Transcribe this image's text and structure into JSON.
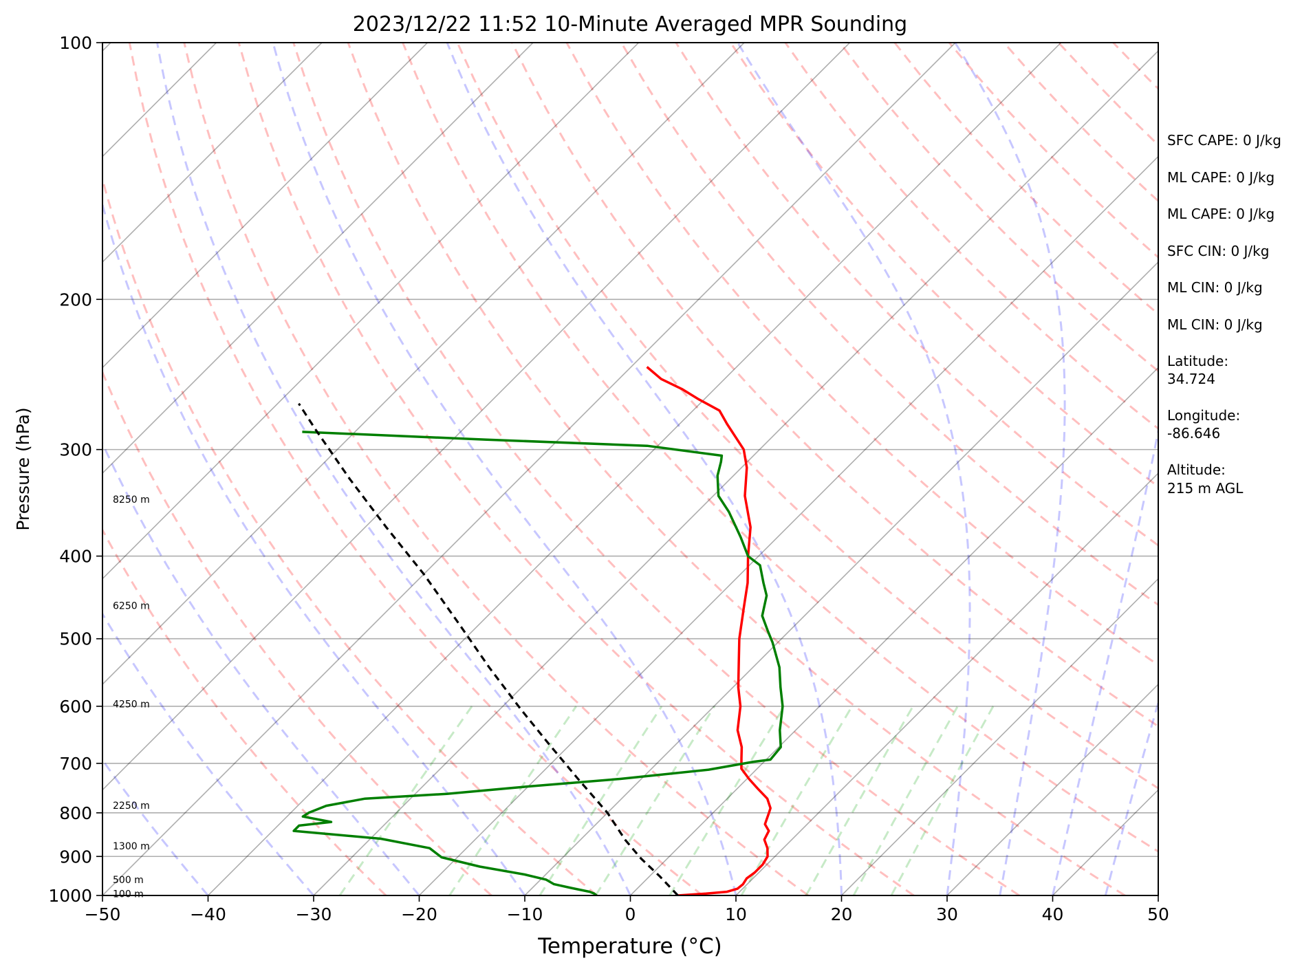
{
  "chart_data": {
    "type": "line",
    "title": "2023/12/22 11:52 10-Minute Averaged MPR Sounding",
    "xlabel": "Temperature (°C)",
    "ylabel": "Pressure (hPa)",
    "xlim": [
      -50,
      50
    ],
    "ylim": [
      1000,
      100
    ],
    "y_scale": "log",
    "x_ticks": [
      "−50",
      "−40",
      "−30",
      "−20",
      "−10",
      "0",
      "10",
      "20",
      "30",
      "40",
      "50"
    ],
    "x_tick_values": [
      -50,
      -40,
      -30,
      -20,
      -10,
      0,
      10,
      20,
      30,
      40,
      50
    ],
    "y_ticks": [
      1000,
      900,
      800,
      700,
      600,
      500,
      400,
      300,
      200,
      100
    ],
    "grid": "horizontal isobars plus skewed isotherms",
    "skew_degrees": 45,
    "series": [
      {
        "key": "temperature",
        "color": "#ff0000",
        "points": [
          [
            4.5,
            1000
          ],
          [
            7.0,
            995
          ],
          [
            8.8,
            990
          ],
          [
            9.5,
            982
          ],
          [
            9.6,
            970
          ],
          [
            9.4,
            955
          ],
          [
            9.6,
            940
          ],
          [
            9.6,
            920
          ],
          [
            9.3,
            900
          ],
          [
            8.5,
            880
          ],
          [
            7.4,
            860
          ],
          [
            7.0,
            840
          ],
          [
            6.0,
            825
          ],
          [
            5.3,
            800
          ],
          [
            5.0,
            790
          ],
          [
            3.8,
            770
          ],
          [
            2.0,
            750
          ],
          [
            0.2,
            730
          ],
          [
            -1.5,
            710
          ],
          [
            -2.5,
            690
          ],
          [
            -3.5,
            670
          ],
          [
            -5.5,
            640
          ],
          [
            -7.5,
            600
          ],
          [
            -9.5,
            570
          ],
          [
            -12.0,
            530
          ],
          [
            -14.0,
            500
          ],
          [
            -16.5,
            460
          ],
          [
            -18.5,
            430
          ],
          [
            -21.0,
            400
          ],
          [
            -23.5,
            370
          ],
          [
            -27.0,
            340
          ],
          [
            -29.5,
            315
          ],
          [
            -31.5,
            300
          ],
          [
            -35.5,
            280
          ],
          [
            -37.5,
            270
          ],
          [
            -40.5,
            262
          ],
          [
            -43.0,
            255
          ],
          [
            -46.0,
            248
          ],
          [
            -48.5,
            240
          ]
        ]
      },
      {
        "key": "dewpoint",
        "color": "#007f00",
        "points": [
          [
            -3.2,
            1000
          ],
          [
            -3.6,
            995
          ],
          [
            -4.2,
            990
          ],
          [
            -6.3,
            980
          ],
          [
            -8.3,
            970
          ],
          [
            -9.5,
            958
          ],
          [
            -12.0,
            945
          ],
          [
            -17.0,
            925
          ],
          [
            -21.5,
            902
          ],
          [
            -23.5,
            880
          ],
          [
            -29.0,
            858
          ],
          [
            -38.0,
            840
          ],
          [
            -38.0,
            828
          ],
          [
            -35.3,
            820
          ],
          [
            -38.5,
            808
          ],
          [
            -38.3,
            800
          ],
          [
            -37.3,
            785
          ],
          [
            -34.3,
            770
          ],
          [
            -27.0,
            760
          ],
          [
            -20.0,
            745
          ],
          [
            -12.0,
            730
          ],
          [
            -4.5,
            712
          ],
          [
            -1.0,
            697
          ],
          [
            0.4,
            693
          ],
          [
            0.2,
            670
          ],
          [
            -1.5,
            640
          ],
          [
            -3.5,
            600
          ],
          [
            -5.5,
            570
          ],
          [
            -7.5,
            540
          ],
          [
            -10.5,
            505
          ],
          [
            -12.0,
            490
          ],
          [
            -14.0,
            470
          ],
          [
            -15.5,
            445
          ],
          [
            -17.0,
            430
          ],
          [
            -19.0,
            410
          ],
          [
            -21.0,
            400
          ],
          [
            -23.5,
            380
          ],
          [
            -27.0,
            355
          ],
          [
            -29.5,
            340
          ],
          [
            -31.5,
            322
          ],
          [
            -32.5,
            310
          ],
          [
            -33.0,
            305
          ],
          [
            -41.0,
            297
          ],
          [
            -57.0,
            292
          ],
          [
            -75.0,
            286
          ]
        ]
      },
      {
        "key": "parcel",
        "color": "#000000",
        "dashed": true,
        "points": [
          [
            4.5,
            1000
          ],
          [
            1.0,
            950
          ],
          [
            -2.5,
            905
          ],
          [
            -5.8,
            860
          ],
          [
            -10.0,
            800
          ],
          [
            -16.0,
            730
          ],
          [
            -22.0,
            665
          ],
          [
            -28.0,
            605
          ],
          [
            -35.0,
            540
          ],
          [
            -42.0,
            480
          ],
          [
            -50.0,
            420
          ],
          [
            -58.0,
            370
          ],
          [
            -66.0,
            325
          ],
          [
            -74.0,
            284
          ],
          [
            -78.0,
            265
          ]
        ]
      }
    ],
    "height_labels": [
      {
        "label": "8250 m",
        "pressure": 343
      },
      {
        "label": "6250 m",
        "pressure": 457
      },
      {
        "label": "4250 m",
        "pressure": 596
      },
      {
        "label": "2250 m",
        "pressure": 784
      },
      {
        "label": "1300 m",
        "pressure": 875
      },
      {
        "label": "500 m",
        "pressure": 958
      },
      {
        "label": "100 m",
        "pressure": 995
      }
    ]
  },
  "side_panel": {
    "sfc_cape": "SFC CAPE: 0 J/kg",
    "ml_cape_1": "ML CAPE: 0 J/kg",
    "ml_cape_2": "ML CAPE: 0 J/kg",
    "sfc_cin": "SFC CIN: 0 J/kg",
    "ml_cin_1": "ML CIN: 0 J/kg",
    "ml_cin_2": "ML CIN: 0 J/kg",
    "latitude_label": "Latitude:",
    "latitude_value": "34.724",
    "longitude_label": "Longitude:",
    "longitude_value": "-86.646",
    "altitude_label": "Altitude:",
    "altitude_value": "215 m AGL"
  }
}
